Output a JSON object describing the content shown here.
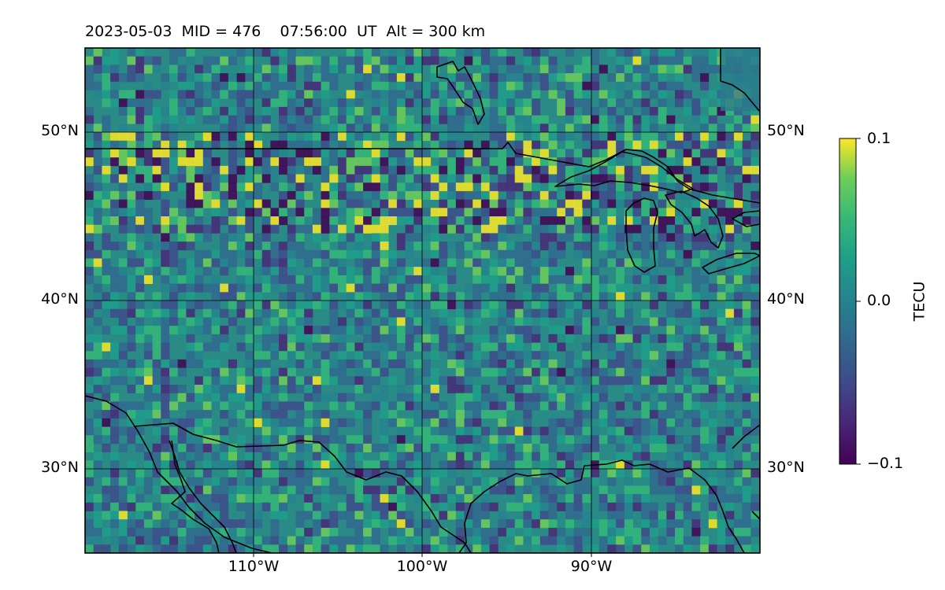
{
  "title": "2023-05-03  MID = 476    07:56:00  UT  Alt = 300 km",
  "map": {
    "lon_range": [
      -120,
      -80
    ],
    "lat_range": [
      25,
      55
    ],
    "lat_ticks": [
      {
        "value": 50,
        "label": "50°N"
      },
      {
        "value": 40,
        "label": "40°N"
      },
      {
        "value": 30,
        "label": "30°N"
      }
    ],
    "lon_ticks": [
      {
        "value": -110,
        "label": "110°W"
      },
      {
        "value": -100,
        "label": "100°W"
      },
      {
        "value": -90,
        "label": "90°W"
      }
    ],
    "gridlines": true,
    "features": [
      "coastlines",
      "US-Canada border",
      "Great Lakes",
      "Gulf of Mexico",
      "Gulf of California"
    ]
  },
  "colorbar": {
    "label": "TECU",
    "colormap": "viridis",
    "vmin": -0.1,
    "vmax": 0.1,
    "ticks": [
      {
        "value": 0.1,
        "label": "0.1"
      },
      {
        "value": 0.0,
        "label": "0.0"
      },
      {
        "value": -0.1,
        "label": "−0.1"
      }
    ]
  },
  "colors": {
    "viridis_low": "#440154",
    "viridis_mid": "#21918c",
    "viridis_high": "#fde725",
    "background_field": "#2a8a86"
  }
}
